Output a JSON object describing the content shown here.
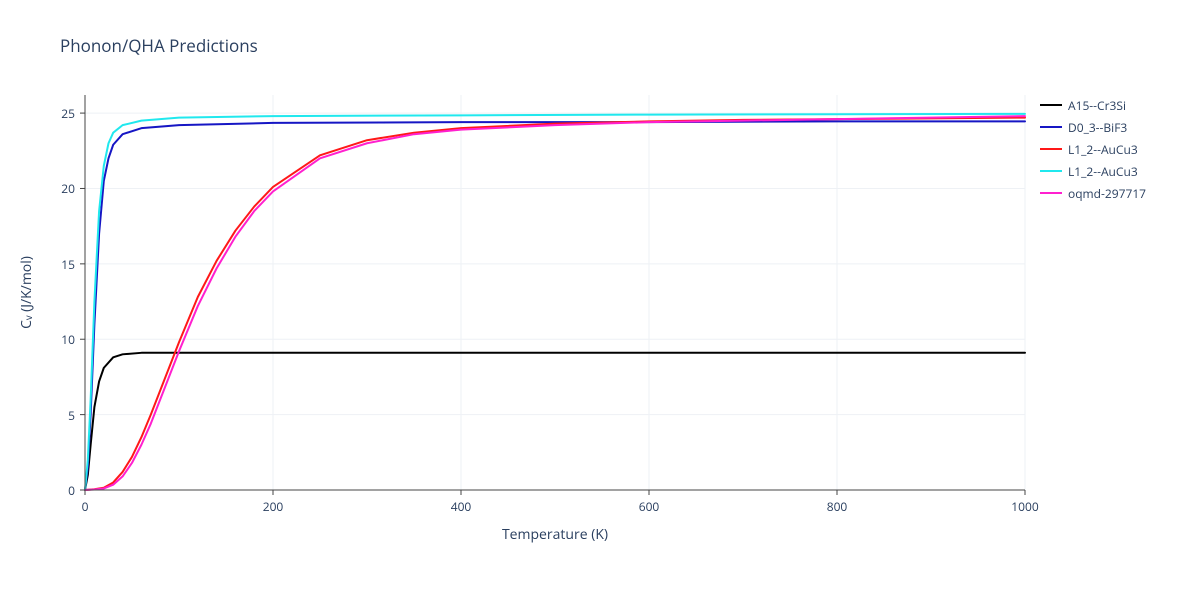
{
  "chart": {
    "type": "line",
    "title": "Phonon/QHA Predictions",
    "x_axis": {
      "label": "Temperature (K)",
      "min": 0,
      "max": 1000,
      "ticks": [
        0,
        200,
        400,
        600,
        800,
        1000
      ]
    },
    "y_axis": {
      "label": "Cᵥ (J/K/mol)",
      "min": 0,
      "max": 26.2,
      "ticks": [
        0,
        5,
        10,
        15,
        20,
        25
      ]
    },
    "background_color": "#ffffff",
    "grid_color": "#eef1f5",
    "axis_line_color": "#444444",
    "tick_color": "#444444",
    "line_width": 2,
    "series": [
      {
        "name": "A15--Cr3Si",
        "color": "#000000",
        "points": [
          [
            0,
            0
          ],
          [
            3,
            1.0
          ],
          [
            6,
            3.0
          ],
          [
            10,
            5.5
          ],
          [
            15,
            7.2
          ],
          [
            20,
            8.1
          ],
          [
            30,
            8.8
          ],
          [
            40,
            9.0
          ],
          [
            60,
            9.1
          ],
          [
            100,
            9.1
          ],
          [
            200,
            9.1
          ],
          [
            400,
            9.1
          ],
          [
            600,
            9.1
          ],
          [
            800,
            9.1
          ],
          [
            1000,
            9.1
          ]
        ]
      },
      {
        "name": "D0_3--BiF3",
        "color": "#1616c4",
        "points": [
          [
            0,
            0
          ],
          [
            3,
            1.5
          ],
          [
            6,
            5.0
          ],
          [
            10,
            11.0
          ],
          [
            15,
            17.0
          ],
          [
            20,
            20.5
          ],
          [
            25,
            22.0
          ],
          [
            30,
            22.9
          ],
          [
            40,
            23.6
          ],
          [
            60,
            24.0
          ],
          [
            100,
            24.2
          ],
          [
            200,
            24.35
          ],
          [
            400,
            24.4
          ],
          [
            600,
            24.4
          ],
          [
            800,
            24.45
          ],
          [
            1000,
            24.45
          ]
        ]
      },
      {
        "name": "L1_2--AuCu3",
        "color": "#ff1818",
        "points": [
          [
            0,
            0
          ],
          [
            10,
            0.05
          ],
          [
            20,
            0.15
          ],
          [
            30,
            0.5
          ],
          [
            40,
            1.2
          ],
          [
            50,
            2.2
          ],
          [
            60,
            3.5
          ],
          [
            70,
            5.0
          ],
          [
            80,
            6.6
          ],
          [
            90,
            8.2
          ],
          [
            100,
            9.8
          ],
          [
            120,
            12.8
          ],
          [
            140,
            15.2
          ],
          [
            160,
            17.2
          ],
          [
            180,
            18.8
          ],
          [
            200,
            20.1
          ],
          [
            250,
            22.2
          ],
          [
            300,
            23.2
          ],
          [
            350,
            23.7
          ],
          [
            400,
            24.0
          ],
          [
            500,
            24.3
          ],
          [
            600,
            24.45
          ],
          [
            700,
            24.55
          ],
          [
            800,
            24.6
          ],
          [
            900,
            24.65
          ],
          [
            1000,
            24.7
          ]
        ]
      },
      {
        "name": "L1_2--AuCu3",
        "color": "#20e8ee",
        "points": [
          [
            0,
            0
          ],
          [
            3,
            2.0
          ],
          [
            6,
            6.0
          ],
          [
            10,
            12.5
          ],
          [
            15,
            18.5
          ],
          [
            20,
            21.5
          ],
          [
            25,
            23.0
          ],
          [
            30,
            23.7
          ],
          [
            40,
            24.2
          ],
          [
            60,
            24.5
          ],
          [
            100,
            24.7
          ],
          [
            200,
            24.8
          ],
          [
            400,
            24.85
          ],
          [
            600,
            24.9
          ],
          [
            800,
            24.92
          ],
          [
            1000,
            24.95
          ]
        ]
      },
      {
        "name": "oqmd-297717",
        "color": "#ff20cf",
        "points": [
          [
            0,
            0
          ],
          [
            10,
            0.03
          ],
          [
            20,
            0.1
          ],
          [
            30,
            0.35
          ],
          [
            40,
            0.9
          ],
          [
            50,
            1.8
          ],
          [
            60,
            3.0
          ],
          [
            70,
            4.4
          ],
          [
            80,
            6.0
          ],
          [
            90,
            7.6
          ],
          [
            100,
            9.2
          ],
          [
            120,
            12.2
          ],
          [
            140,
            14.7
          ],
          [
            160,
            16.8
          ],
          [
            180,
            18.5
          ],
          [
            200,
            19.8
          ],
          [
            250,
            22.0
          ],
          [
            300,
            23.0
          ],
          [
            350,
            23.6
          ],
          [
            400,
            23.9
          ],
          [
            500,
            24.2
          ],
          [
            600,
            24.4
          ],
          [
            700,
            24.5
          ],
          [
            800,
            24.6
          ],
          [
            900,
            24.7
          ],
          [
            1000,
            24.8
          ]
        ]
      }
    ]
  }
}
